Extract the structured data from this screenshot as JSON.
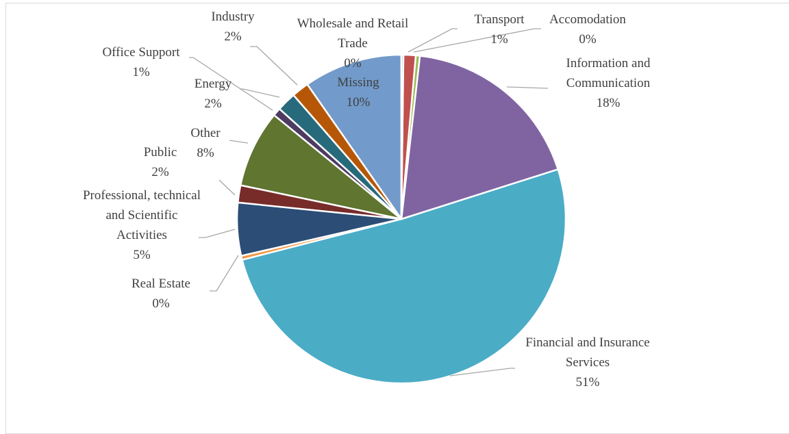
{
  "chart_data": {
    "type": "pie",
    "categories": [
      "Wholesale and Retail Trade",
      "Transport",
      "Accomodation",
      "Information and Communication",
      "Financial and Insurance Services",
      "Real Estate",
      "Professional, technical and Scientific Activities",
      "Public",
      "Other",
      "Office Support",
      "Energy",
      "Industry",
      "Missing"
    ],
    "values": [
      0.2,
      1.2,
      0.4,
      18.3,
      50.9,
      0.4,
      5.2,
      1.7,
      7.6,
      0.8,
      1.9,
      1.7,
      9.7
    ],
    "value_labels": [
      "0%",
      "1%",
      "0%",
      "18%",
      "51%",
      "0%",
      "5%",
      "2%",
      "8%",
      "1%",
      "2%",
      "2%",
      "10%"
    ],
    "colors": [
      "#a5a5a5",
      "#c0504d",
      "#9bbb59",
      "#8064a2",
      "#4bacc6",
      "#f79646",
      "#2c4d75",
      "#772c2a",
      "#5f7530",
      "#4d3b62",
      "#276a7c",
      "#b65708",
      "#729aca"
    ]
  }
}
